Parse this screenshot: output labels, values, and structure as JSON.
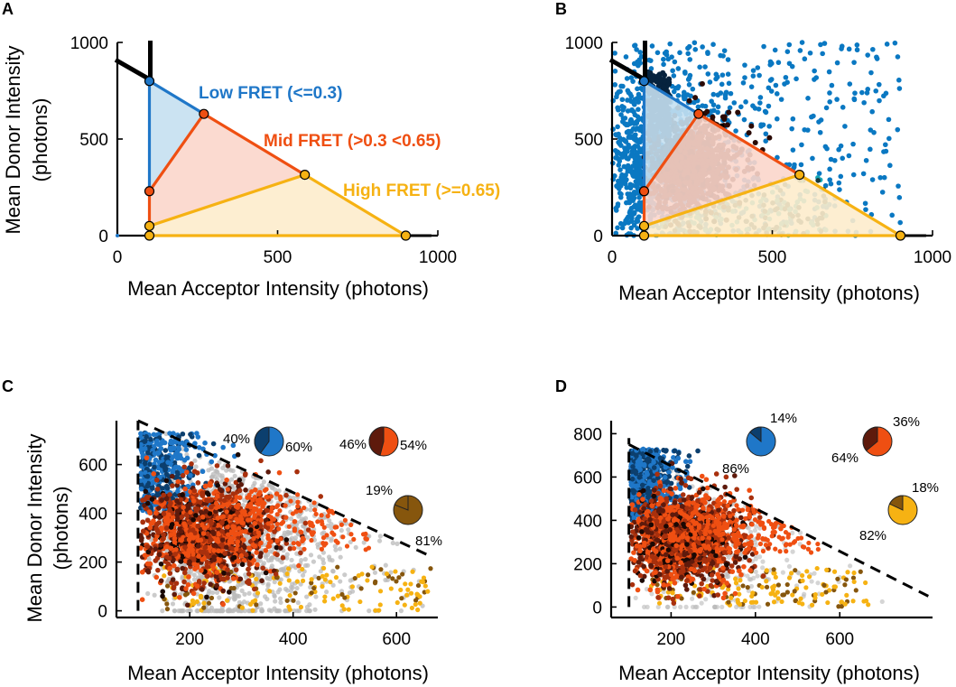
{
  "colors": {
    "low": "#1f77c8",
    "low_fill": "#c5e0f1",
    "low_dark": "#0c3f6e",
    "mid": "#ef4f12",
    "mid_fill": "#fbd6cb",
    "mid_dark": "#5e1a0c",
    "high": "#f6b213",
    "high_fill": "#fdeccc",
    "high_dark": "#86560d",
    "scatter_blue": "#0a78c2",
    "scatter_cyan": "#17a6b6",
    "scatter_core": "#2a0a05",
    "grey": "#b9b9b9"
  },
  "panels": {
    "A": {
      "letter": "A",
      "xlabel": "Mean Acceptor Intensity (photons)",
      "ylabel_line1": "Mean Donor Intensity",
      "ylabel_line2": "(photons)"
    },
    "B": {
      "letter": "B",
      "xlabel": "Mean Acceptor Intensity (photons)"
    },
    "C": {
      "letter": "C",
      "xlabel": "Mean Acceptor Intensity (photons)",
      "ylabel_line1": "Mean Donor Intensity",
      "ylabel_line2": "(photons)"
    },
    "D": {
      "letter": "D",
      "xlabel": "Mean Acceptor Intensity (photons)"
    }
  },
  "region_labels": {
    "low": "Low FRET (<=0.3)",
    "mid": "Mid FRET (>0.3 <0.65)",
    "high": "High FRET (>=0.65)"
  },
  "chart_data": [
    {
      "panel": "A",
      "type": "scatter",
      "title": "",
      "xlabel": "Mean Acceptor Intensity (photons)",
      "ylabel": "Mean Donor Intensity (photons)",
      "xlim": [
        0,
        1000
      ],
      "ylim": [
        0,
        1000
      ],
      "xticks": [
        0,
        500,
        1000
      ],
      "yticks": [
        0,
        500,
        1000
      ],
      "regions": [
        {
          "name": "Low FRET (<=0.3)",
          "vertices": [
            [
              100,
              800
            ],
            [
              270,
              630
            ],
            [
              100,
              230
            ]
          ]
        },
        {
          "name": "Mid FRET (>0.3 <0.65)",
          "vertices": [
            [
              100,
              230
            ],
            [
              270,
              630
            ],
            [
              585,
              315
            ],
            [
              100,
              50
            ]
          ]
        },
        {
          "name": "High FRET (>=0.65)",
          "vertices": [
            [
              100,
              50
            ],
            [
              585,
              315
            ],
            [
              900,
              0
            ],
            [
              100,
              0
            ]
          ]
        }
      ],
      "boundary_lines": [
        {
          "name": "total intensity cutoff",
          "points": [
            [
              0,
              900
            ],
            [
              900,
              0
            ]
          ]
        },
        {
          "name": "acceptor threshold",
          "points": [
            [
              100,
              0
            ],
            [
              100,
              1000
            ]
          ]
        }
      ]
    },
    {
      "panel": "B",
      "type": "scatter",
      "xlabel": "Mean Acceptor Intensity (photons)",
      "ylabel": "",
      "xlim": [
        0,
        1000
      ],
      "ylim": [
        0,
        1000
      ],
      "xticks": [
        0,
        500,
        1000
      ],
      "yticks": [
        0,
        500,
        1000
      ],
      "note": "Same gating regions as A overlaid on single-molecule scatter"
    },
    {
      "panel": "C",
      "type": "scatter",
      "xlabel": "Mean Acceptor Intensity (photons)",
      "ylabel": "Mean Donor Intensity (photons)",
      "xlim": [
        60,
        680
      ],
      "ylim": [
        -20,
        780
      ],
      "xticks": [
        200,
        400,
        600
      ],
      "yticks": [
        0,
        200,
        400,
        600
      ],
      "cutoff_lines": [
        {
          "points": [
            [
              100,
              780
            ],
            [
              670,
              220
            ]
          ]
        },
        {
          "points": [
            [
              100,
              0
            ],
            [
              100,
              780
            ]
          ]
        }
      ],
      "pies": [
        {
          "region": "low",
          "values": [
            40,
            60
          ],
          "labels": [
            "40%",
            "60%"
          ]
        },
        {
          "region": "mid",
          "values": [
            46,
            54
          ],
          "labels": [
            "46%",
            "54%"
          ]
        },
        {
          "region": "high",
          "values": [
            19,
            81
          ],
          "labels": [
            "19%",
            "81%"
          ]
        }
      ]
    },
    {
      "panel": "D",
      "type": "scatter",
      "xlabel": "Mean Acceptor Intensity (photons)",
      "ylabel": "",
      "xlim": [
        60,
        820
      ],
      "ylim": [
        -40,
        860
      ],
      "xticks": [
        200,
        400,
        600
      ],
      "yticks": [
        0,
        200,
        400,
        600,
        800
      ],
      "cutoff_lines": [
        {
          "points": [
            [
              100,
              750
            ],
            [
              810,
              50
            ]
          ]
        },
        {
          "points": [
            [
              100,
              0
            ],
            [
              100,
              780
            ]
          ]
        }
      ],
      "pies": [
        {
          "region": "low",
          "values": [
            14,
            86
          ],
          "labels": [
            "14%",
            "86%"
          ]
        },
        {
          "region": "mid",
          "values": [
            36,
            64
          ],
          "labels": [
            "36%",
            "64%"
          ]
        },
        {
          "region": "high",
          "values": [
            18,
            82
          ],
          "labels": [
            "18%",
            "82%"
          ]
        }
      ]
    }
  ]
}
